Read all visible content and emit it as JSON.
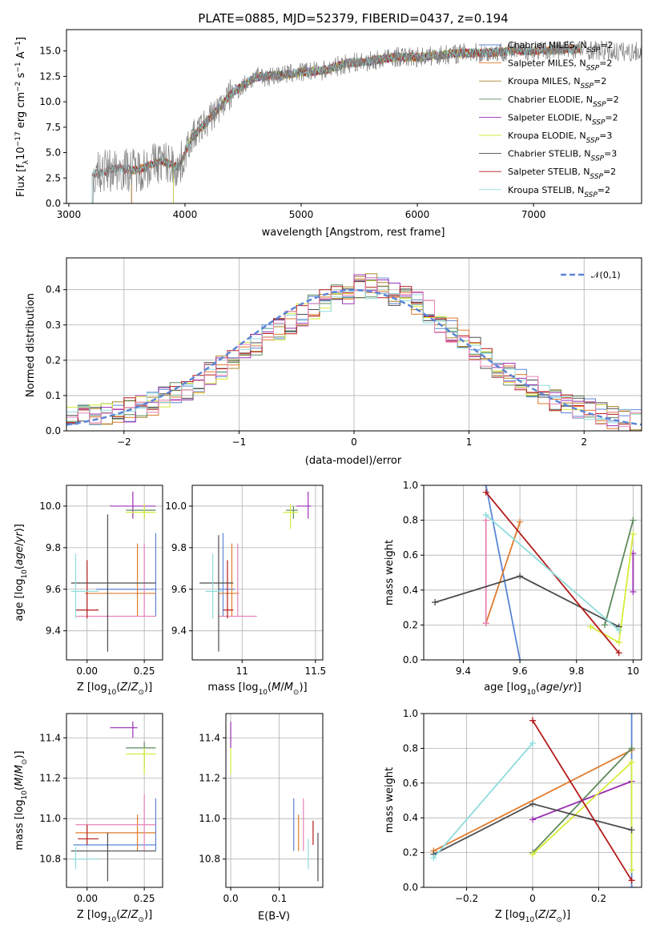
{
  "colors": {
    "Chabrier MILES": "#5b86d6",
    "Salpeter MILES": "#e07b2c",
    "Kroupa MILES": "#a9862a",
    "Chabrier ELODIE": "#5e8a5e",
    "Salpeter ELODIE": "#9b2fb5",
    "Kroupa ELODIE": "#d7ec3a",
    "Chabrier STELIB": "#4d4d4d",
    "Salpeter STELIB": "#b51a1a",
    "Kroupa STELIB": "#8fdcdc",
    "pink": "#e882b8",
    "grid": "#b0b0b0"
  },
  "chart_data": [
    {
      "id": "spectrum",
      "type": "line",
      "title": "PLATE=0885, MJD=52379, FIBERID=0437, z=0.194",
      "xlabel": "wavelength [Angstrom, rest frame]",
      "ylabel": "Flux [f_λ 10^-17 erg cm^-2 s^-1 A^-1]",
      "xlim": [
        2980,
        7930
      ],
      "ylim": [
        0,
        17.1
      ],
      "xticks": [
        3000,
        4000,
        5000,
        6000,
        7000
      ],
      "yticks": [
        0.0,
        2.5,
        5.0,
        7.5,
        10.0,
        12.5,
        15.0
      ],
      "grid": false,
      "legend_position": "right",
      "series_labels": [
        {
          "name": "Chabrier MILES",
          "n": "2"
        },
        {
          "name": "Salpeter MILES",
          "n": "2"
        },
        {
          "name": "Kroupa MILES",
          "n": "2"
        },
        {
          "name": "Chabrier ELODIE",
          "n": "2"
        },
        {
          "name": "Salpeter ELODIE",
          "n": "2"
        },
        {
          "name": "Kroupa ELODIE",
          "n": "3"
        },
        {
          "name": "Chabrier STELIB",
          "n": "3"
        },
        {
          "name": "Salpeter STELIB",
          "n": "2"
        },
        {
          "name": "Kroupa STELIB",
          "n": "2"
        }
      ],
      "continuum_x": [
        3200,
        3400,
        3600,
        3800,
        3950,
        4050,
        4200,
        4400,
        4600,
        4800,
        5000,
        5200,
        5400,
        5600,
        5800,
        6000,
        6200,
        6400,
        6600,
        6800,
        7000,
        7200,
        7400,
        7600,
        7800
      ],
      "continuum_y": [
        2.9,
        3.4,
        3.3,
        4.2,
        3.5,
        6.3,
        8.2,
        10.8,
        12.4,
        12.6,
        12.9,
        13.1,
        13.8,
        14.0,
        14.4,
        14.4,
        14.6,
        14.8,
        14.8,
        15.0,
        15.0,
        15.1,
        15.2,
        15.0,
        14.9
      ],
      "model_ranges": {
        "Chabrier MILES": [
          3540,
          7400
        ],
        "Salpeter MILES": [
          3540,
          7400
        ],
        "Kroupa MILES": [
          3540,
          7400
        ],
        "Chabrier ELODIE": [
          3900,
          6800
        ],
        "Salpeter ELODIE": [
          3900,
          6800
        ],
        "Kroupa ELODIE": [
          3900,
          6800
        ],
        "Chabrier STELIB": [
          3200,
          7400
        ],
        "Salpeter STELIB": [
          3200,
          7400
        ],
        "Kroupa STELIB": [
          3200,
          7400
        ]
      }
    },
    {
      "id": "residuals",
      "type": "line",
      "xlabel": "(data-model)/error",
      "ylabel": "Normed distribution",
      "xlim": [
        -2.5,
        2.5
      ],
      "ylim": [
        0,
        0.49
      ],
      "xticks": [
        -2,
        -1,
        0,
        1,
        2
      ],
      "yticks": [
        0.0,
        0.1,
        0.2,
        0.3,
        0.4
      ],
      "grid": true,
      "legend": "𝒩(0,1)",
      "legend_position": "top-right",
      "bin_width": 0.1,
      "bin_start": -2.5,
      "base": [
        0.045,
        0.048,
        0.05,
        0.05,
        0.053,
        0.06,
        0.068,
        0.078,
        0.09,
        0.105,
        0.12,
        0.14,
        0.16,
        0.18,
        0.2,
        0.22,
        0.245,
        0.27,
        0.29,
        0.31,
        0.33,
        0.35,
        0.37,
        0.385,
        0.395,
        0.41,
        0.41,
        0.4,
        0.39,
        0.38,
        0.36,
        0.335,
        0.31,
        0.285,
        0.26,
        0.235,
        0.21,
        0.185,
        0.16,
        0.14,
        0.12,
        0.105,
        0.09,
        0.078,
        0.066,
        0.056,
        0.047,
        0.04,
        0.032,
        0.025
      ]
    },
    {
      "id": "age_vs_Z",
      "type": "scatter",
      "xlabel": "Z [log10(Z/Z⊙)]",
      "ylabel": "age [log10(age/yr)]",
      "xlim": [
        -0.09,
        0.33
      ],
      "ylim": [
        9.26,
        10.1
      ],
      "xticks": [
        0.0,
        0.25
      ],
      "xticklabels": [
        "0.00",
        "0.25"
      ],
      "yticks": [
        9.4,
        9.6,
        9.8,
        10.0
      ],
      "grid": true,
      "points": [
        {
          "c": "Chabrier MILES",
          "x": 0.3,
          "y": 9.6,
          "xlo": 0.04,
          "xhi": 0.3,
          "ylo": 9.47,
          "yhi": 9.87
        },
        {
          "c": "Salpeter MILES",
          "x": 0.22,
          "y": 9.58,
          "xlo": -0.01,
          "xhi": 0.3,
          "ylo": 9.47,
          "yhi": 9.82
        },
        {
          "c": "pink",
          "x": 0.25,
          "y": 9.47,
          "xlo": -0.05,
          "xhi": 0.3,
          "ylo": 9.47,
          "yhi": 9.82
        },
        {
          "c": "Salpeter ELODIE",
          "x": 0.2,
          "y": 10.0,
          "xlo": 0.1,
          "xhi": 0.3,
          "ylo": 9.94,
          "yhi": 10.07
        },
        {
          "c": "Chabrier ELODIE",
          "x": 0.25,
          "y": 9.98,
          "xlo": 0.17,
          "xhi": 0.3,
          "ylo": 9.94,
          "yhi": 10.0
        },
        {
          "c": "Kroupa ELODIE",
          "x": 0.25,
          "y": 9.97,
          "xlo": 0.17,
          "xhi": 0.3,
          "ylo": 9.94,
          "yhi": 10.01
        },
        {
          "c": "Chabrier STELIB",
          "x": 0.09,
          "y": 9.63,
          "xlo": -0.07,
          "xhi": 0.3,
          "ylo": 9.3,
          "yhi": 9.96
        },
        {
          "c": "Salpeter STELIB",
          "x": 0.0,
          "y": 9.5,
          "xlo": -0.05,
          "xhi": 0.05,
          "ylo": 9.46,
          "yhi": 9.74
        },
        {
          "c": "Kroupa STELIB",
          "x": -0.05,
          "y": 9.59,
          "xlo": -0.07,
          "xhi": 0.05,
          "ylo": 9.46,
          "yhi": 9.77
        }
      ]
    },
    {
      "id": "age_vs_mass",
      "type": "scatter",
      "xlabel": "mass [log10(M/M⊙)]",
      "ylabel": "",
      "xlim": [
        10.66,
        11.55
      ],
      "ylim": [
        9.26,
        10.1
      ],
      "xticks": [
        11.0,
        11.5
      ],
      "yticks": [
        9.4,
        9.6,
        9.8,
        10.0
      ],
      "grid": true,
      "points": [
        {
          "c": "Chabrier MILES",
          "x": 10.87,
          "y": 9.6,
          "xlo": 10.84,
          "xhi": 10.95,
          "ylo": 9.47,
          "yhi": 9.87
        },
        {
          "c": "Salpeter MILES",
          "x": 10.93,
          "y": 9.58,
          "xlo": 10.84,
          "xhi": 10.98,
          "ylo": 9.47,
          "yhi": 9.82
        },
        {
          "c": "pink",
          "x": 10.97,
          "y": 9.47,
          "xlo": 10.84,
          "xhi": 11.1,
          "ylo": 9.47,
          "yhi": 9.82
        },
        {
          "c": "Salpeter ELODIE",
          "x": 11.45,
          "y": 10.0,
          "xlo": 11.37,
          "xhi": 11.47,
          "ylo": 9.94,
          "yhi": 10.07
        },
        {
          "c": "Chabrier ELODIE",
          "x": 11.35,
          "y": 9.98,
          "xlo": 11.3,
          "xhi": 11.38,
          "ylo": 9.94,
          "yhi": 10.0
        },
        {
          "c": "Kroupa ELODIE",
          "x": 11.33,
          "y": 9.97,
          "xlo": 11.28,
          "xhi": 11.38,
          "ylo": 9.89,
          "yhi": 10.01
        },
        {
          "c": "Chabrier STELIB",
          "x": 10.84,
          "y": 9.63,
          "xlo": 10.71,
          "xhi": 10.94,
          "ylo": 9.3,
          "yhi": 9.86
        },
        {
          "c": "Salpeter STELIB",
          "x": 10.9,
          "y": 9.5,
          "xlo": 10.87,
          "xhi": 10.94,
          "ylo": 9.46,
          "yhi": 9.74
        },
        {
          "c": "Kroupa STELIB",
          "x": 10.8,
          "y": 9.59,
          "xlo": 10.75,
          "xhi": 10.86,
          "ylo": 9.46,
          "yhi": 9.77
        }
      ]
    },
    {
      "id": "massweight_vs_age",
      "type": "line",
      "xlabel": "age log10(age/yr)",
      "ylabel": "mass weight",
      "xlim": [
        9.26,
        10.03
      ],
      "ylim": [
        0,
        1
      ],
      "xticks": [
        9.4,
        9.6,
        9.8,
        10.0
      ],
      "yticks": [
        0.0,
        0.2,
        0.4,
        0.6,
        0.8,
        1.0
      ],
      "grid": true,
      "series": [
        {
          "c": "Chabrier MILES",
          "x": [
            9.48,
            9.6
          ],
          "y": [
            1.0,
            0.0
          ]
        },
        {
          "c": "Salpeter MILES",
          "x": [
            9.48,
            9.6
          ],
          "y": [
            0.21,
            0.79
          ]
        },
        {
          "c": "pink",
          "x": [
            9.48,
            9.48
          ],
          "y": [
            0.8,
            0.21
          ]
        },
        {
          "c": "Chabrier ELODIE",
          "x": [
            9.9,
            10.0
          ],
          "y": [
            0.2,
            0.8
          ]
        },
        {
          "c": "Salpeter ELODIE",
          "x": [
            10.0,
            10.0
          ],
          "y": [
            0.61,
            0.39
          ]
        },
        {
          "c": "Kroupa ELODIE",
          "x": [
            9.85,
            9.95,
            10.0
          ],
          "y": [
            0.19,
            0.1,
            0.72
          ]
        },
        {
          "c": "Chabrier STELIB",
          "x": [
            9.3,
            9.6,
            9.95
          ],
          "y": [
            0.33,
            0.48,
            0.19
          ]
        },
        {
          "c": "Salpeter STELIB",
          "x": [
            9.48,
            9.95
          ],
          "y": [
            0.96,
            0.04
          ]
        },
        {
          "c": "Kroupa STELIB",
          "x": [
            9.48,
            9.95
          ],
          "y": [
            0.83,
            0.17
          ]
        }
      ]
    },
    {
      "id": "mass_vs_Z",
      "type": "scatter",
      "xlabel": "Z [log10(Z/Z⊙)]",
      "ylabel": "mass [log10(M/M⊙)]",
      "xlim": [
        -0.09,
        0.33
      ],
      "ylim": [
        10.66,
        11.52
      ],
      "xticks": [
        0.0,
        0.25
      ],
      "xticklabels": [
        "0.00",
        "0.25"
      ],
      "yticks": [
        10.8,
        11.0,
        11.2,
        11.4
      ],
      "grid": true,
      "points": [
        {
          "c": "Chabrier MILES",
          "x": 0.3,
          "y": 10.87,
          "xlo": -0.06,
          "xhi": 0.3,
          "ylo": 10.84,
          "yhi": 11.1
        },
        {
          "c": "Salpeter MILES",
          "x": 0.22,
          "y": 10.93,
          "xlo": -0.05,
          "xhi": 0.3,
          "ylo": 10.84,
          "yhi": 11.02
        },
        {
          "c": "pink",
          "x": 0.25,
          "y": 10.97,
          "xlo": -0.05,
          "xhi": 0.3,
          "ylo": 10.84,
          "yhi": 11.12
        },
        {
          "c": "Salpeter ELODIE",
          "x": 0.2,
          "y": 11.45,
          "xlo": 0.1,
          "xhi": 0.22,
          "ylo": 11.4,
          "yhi": 11.48
        },
        {
          "c": "Chabrier ELODIE",
          "x": 0.25,
          "y": 11.35,
          "xlo": 0.17,
          "xhi": 0.3,
          "ylo": 11.25,
          "yhi": 11.38
        },
        {
          "c": "Kroupa ELODIE",
          "x": 0.25,
          "y": 11.32,
          "xlo": 0.17,
          "xhi": 0.3,
          "ylo": 11.22,
          "yhi": 11.35
        },
        {
          "c": "Chabrier STELIB",
          "x": 0.09,
          "y": 10.84,
          "xlo": -0.07,
          "xhi": 0.3,
          "ylo": 10.69,
          "yhi": 10.93
        },
        {
          "c": "Salpeter STELIB",
          "x": 0.0,
          "y": 10.9,
          "xlo": -0.04,
          "xhi": 0.05,
          "ylo": 10.87,
          "yhi": 10.97
        },
        {
          "c": "Kroupa STELIB",
          "x": -0.05,
          "y": 10.8,
          "xlo": -0.07,
          "xhi": 0.05,
          "ylo": 10.75,
          "yhi": 10.86
        }
      ]
    },
    {
      "id": "mass_vs_ebv",
      "type": "scatter",
      "xlabel": "E(B-V)",
      "ylabel": "",
      "xlim": [
        -0.01,
        0.19
      ],
      "ylim": [
        10.66,
        11.52
      ],
      "xticks": [
        0.0,
        0.1
      ],
      "xticklabels": [
        "0.0",
        "0.1"
      ],
      "yticks": [
        10.8,
        11.0,
        11.2,
        11.4
      ],
      "grid": true,
      "points": [
        {
          "c": "Chabrier MILES",
          "x": 0.13,
          "y": 10.97,
          "xlo": 0.13,
          "xhi": 0.13,
          "ylo": 10.84,
          "yhi": 11.1
        },
        {
          "c": "Salpeter MILES",
          "x": 0.14,
          "y": 10.93,
          "xlo": 0.14,
          "xhi": 0.14,
          "ylo": 10.84,
          "yhi": 11.02
        },
        {
          "c": "pink",
          "x": 0.15,
          "y": 10.97,
          "xlo": 0.15,
          "xhi": 0.15,
          "ylo": 10.84,
          "yhi": 11.1
        },
        {
          "c": "Salpeter ELODIE",
          "x": 0.0,
          "y": 11.42,
          "xlo": 0.0,
          "xhi": 0.0,
          "ylo": 11.35,
          "yhi": 11.48
        },
        {
          "c": "Kroupa ELODIE",
          "x": 0.0,
          "y": 11.3,
          "xlo": 0.0,
          "xhi": 0.0,
          "ylo": 11.22,
          "yhi": 11.35
        },
        {
          "c": "Chabrier STELIB",
          "x": 0.18,
          "y": 10.84,
          "xlo": 0.18,
          "xhi": 0.18,
          "ylo": 10.69,
          "yhi": 10.93
        },
        {
          "c": "Salpeter STELIB",
          "x": 0.17,
          "y": 10.9,
          "xlo": 0.17,
          "xhi": 0.17,
          "ylo": 10.87,
          "yhi": 10.99
        },
        {
          "c": "Kroupa STELIB",
          "x": 0.16,
          "y": 10.82,
          "xlo": 0.16,
          "xhi": 0.16,
          "ylo": 10.75,
          "yhi": 10.9
        }
      ]
    },
    {
      "id": "massweight_vs_Z",
      "type": "line",
      "xlabel": "Z [log10(Z/Z⊙)]",
      "ylabel": "mass weight",
      "xlim": [
        -0.33,
        0.33
      ],
      "ylim": [
        0,
        1
      ],
      "xticks": [
        -0.2,
        0.0,
        0.2
      ],
      "yticks": [
        0.0,
        0.2,
        0.4,
        0.6,
        0.8,
        1.0
      ],
      "grid": true,
      "series": [
        {
          "c": "Chabrier MILES",
          "x": [
            0.3,
            0.3
          ],
          "y": [
            1.0,
            0.0
          ]
        },
        {
          "c": "Salpeter MILES",
          "x": [
            -0.3,
            0.3
          ],
          "y": [
            0.21,
            0.79
          ]
        },
        {
          "c": "Chabrier ELODIE",
          "x": [
            0.0,
            0.3
          ],
          "y": [
            0.2,
            0.8
          ]
        },
        {
          "c": "Salpeter ELODIE",
          "x": [
            0.0,
            0.3
          ],
          "y": [
            0.39,
            0.61
          ]
        },
        {
          "c": "Kroupa ELODIE",
          "x": [
            0.0,
            0.3,
            0.3
          ],
          "y": [
            0.19,
            0.72,
            0.1
          ]
        },
        {
          "c": "Chabrier STELIB",
          "x": [
            -0.3,
            0.0,
            0.3
          ],
          "y": [
            0.19,
            0.48,
            0.33
          ]
        },
        {
          "c": "Salpeter STELIB",
          "x": [
            0.0,
            0.3
          ],
          "y": [
            0.96,
            0.04
          ]
        },
        {
          "c": "Kroupa STELIB",
          "x": [
            -0.3,
            0.0
          ],
          "y": [
            0.17,
            0.83
          ]
        }
      ]
    }
  ]
}
